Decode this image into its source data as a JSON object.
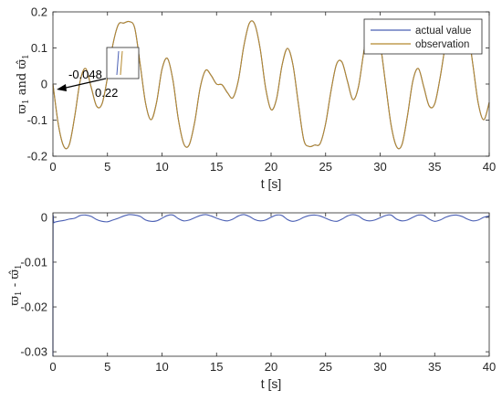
{
  "chart_data": [
    {
      "type": "line",
      "xlabel": "t [s]",
      "ylabel": {
        "main": "ϖ",
        "sub1": "1",
        "mid": " and ",
        "main2": "ϖ̂",
        "sub2": "1"
      },
      "xlim": [
        0,
        40
      ],
      "ylim": [
        -0.2,
        0.2
      ],
      "xticks": [
        0,
        5,
        10,
        15,
        20,
        25,
        30,
        35,
        40
      ],
      "yticks": [
        -0.2,
        -0.1,
        0,
        0.1,
        0.2
      ],
      "ytick_labels": [
        "-0.2",
        "-0.1",
        "0",
        "0.1",
        "0.2"
      ],
      "legend": {
        "position": "top-right",
        "entries": [
          "actual value",
          "observation"
        ]
      },
      "annotation": {
        "text1": "-0.048",
        "text2": "0.22",
        "arrow_to": [
          0.2,
          0.0
        ]
      },
      "series": [
        {
          "name": "actual value",
          "color": "#4a5fb4",
          "x": [
            0,
            0.5,
            1,
            1.5,
            2,
            2.5,
            3,
            3.5,
            4,
            4.5,
            5,
            5.5,
            6,
            6.5,
            7,
            7.5,
            8,
            8.5,
            9,
            9.5,
            10,
            10.5,
            11,
            11.5,
            12,
            12.5,
            13,
            13.5,
            14,
            14.5,
            15,
            15.5,
            16,
            16.5,
            17,
            17.5,
            18,
            18.5,
            19,
            19.5,
            20,
            20.5,
            21,
            21.5,
            22,
            22.5,
            23,
            23.5,
            24,
            24.5,
            25,
            25.5,
            26,
            26.5,
            27,
            27.5,
            28,
            28.5,
            29,
            29.5,
            30,
            30.5,
            31,
            31.5,
            32,
            32.5,
            33,
            33.5,
            34,
            34.5,
            35,
            35.5,
            36,
            36.5,
            37,
            37.5,
            38,
            38.5,
            39,
            39.5,
            40
          ],
          "y": [
            0,
            -0.113,
            -0.173,
            -0.168,
            -0.089,
            0.009,
            0.043,
            -0.008,
            -0.061,
            -0.055,
            0.018,
            0.11,
            0.165,
            0.169,
            0.173,
            0.155,
            0.054,
            -0.054,
            -0.099,
            -0.051,
            0.041,
            0.071,
            0.011,
            -0.098,
            -0.166,
            -0.168,
            -0.105,
            -0.01,
            0.038,
            0.024,
            0,
            -0.002,
            -0.024,
            -0.038,
            0.01,
            0.105,
            0.168,
            0.166,
            0.098,
            -0.011,
            -0.071,
            -0.041,
            0.051,
            0.099,
            0.054,
            -0.054,
            -0.155,
            -0.173,
            -0.169,
            -0.165,
            -0.11,
            -0.018,
            0.055,
            0.061,
            0.008,
            -0.043,
            -0.009,
            0.089,
            0.168,
            0.173,
            0.113,
            0,
            -0.113,
            -0.173,
            -0.168,
            -0.089,
            0.009,
            0.043,
            -0.008,
            -0.061,
            -0.055,
            0.018,
            0.11,
            0.165,
            0.169,
            0.173,
            0.155,
            0.054,
            -0.054,
            -0.099,
            -0.051
          ]
        },
        {
          "name": "observation",
          "color": "#b5892e",
          "x": [
            0,
            0.5,
            1,
            1.5,
            2,
            2.5,
            3,
            3.5,
            4,
            4.5,
            5,
            5.5,
            6,
            6.5,
            7,
            7.5,
            8,
            8.5,
            9,
            9.5,
            10,
            10.5,
            11,
            11.5,
            12,
            12.5,
            13,
            13.5,
            14,
            14.5,
            15,
            15.5,
            16,
            16.5,
            17,
            17.5,
            18,
            18.5,
            19,
            19.5,
            20,
            20.5,
            21,
            21.5,
            22,
            22.5,
            23,
            23.5,
            24,
            24.5,
            25,
            25.5,
            26,
            26.5,
            27,
            27.5,
            28,
            28.5,
            29,
            29.5,
            30,
            30.5,
            31,
            31.5,
            32,
            32.5,
            33,
            33.5,
            34,
            34.5,
            35,
            35.5,
            36,
            36.5,
            37,
            37.5,
            38,
            38.5,
            39,
            39.5,
            40
          ],
          "y": [
            0,
            -0.113,
            -0.173,
            -0.168,
            -0.089,
            0.009,
            0.043,
            -0.008,
            -0.061,
            -0.055,
            0.018,
            0.11,
            0.165,
            0.169,
            0.173,
            0.155,
            0.054,
            -0.054,
            -0.099,
            -0.051,
            0.041,
            0.071,
            0.011,
            -0.098,
            -0.166,
            -0.168,
            -0.105,
            -0.01,
            0.038,
            0.024,
            0,
            -0.002,
            -0.024,
            -0.038,
            0.01,
            0.105,
            0.168,
            0.166,
            0.098,
            -0.011,
            -0.071,
            -0.041,
            0.051,
            0.099,
            0.054,
            -0.054,
            -0.155,
            -0.173,
            -0.169,
            -0.165,
            -0.11,
            -0.018,
            0.055,
            0.061,
            0.008,
            -0.043,
            -0.009,
            0.089,
            0.168,
            0.173,
            0.113,
            0,
            -0.113,
            -0.173,
            -0.168,
            -0.089,
            0.009,
            0.043,
            -0.008,
            -0.061,
            -0.055,
            0.018,
            0.11,
            0.165,
            0.169,
            0.173,
            0.155,
            0.054,
            -0.054,
            -0.099,
            -0.051
          ]
        }
      ]
    },
    {
      "type": "line",
      "xlabel": "t [s]",
      "ylabel": {
        "main": "ϖ",
        "sub1": "1",
        "mid": " - ",
        "main2": "ϖ̂",
        "sub2": "1"
      },
      "xlim": [
        0,
        40
      ],
      "ylim": [
        -0.031,
        0.001
      ],
      "xticks": [
        0,
        5,
        10,
        15,
        20,
        25,
        30,
        35,
        40
      ],
      "yticks": [
        -0.03,
        -0.02,
        -0.01,
        0
      ],
      "ytick_labels": [
        "-0.03",
        "-0.02",
        "-0.01",
        "0"
      ],
      "series": [
        {
          "color": "#4a5fb4",
          "x": [
            0,
            0.01,
            0.1,
            0.5,
            1,
            1.5,
            2,
            2.5,
            3,
            3.5,
            4,
            4.5,
            5,
            5.5,
            6,
            6.5,
            7,
            7.5,
            8,
            8.5,
            9,
            9.5,
            10,
            10.5,
            11,
            11.5,
            12,
            12.5,
            13,
            13.5,
            14,
            14.5,
            15,
            15.5,
            16,
            16.5,
            17,
            17.5,
            18,
            18.5,
            19,
            19.5,
            20,
            20.5,
            21,
            21.5,
            22,
            22.5,
            23,
            23.5,
            24,
            24.5,
            25,
            25.5,
            26,
            26.5,
            27,
            27.5,
            28,
            28.5,
            29,
            29.5,
            30,
            30.5,
            31,
            31.5,
            32,
            32.5,
            33,
            33.5,
            34,
            34.5,
            35,
            35.5,
            36,
            36.5,
            37,
            37.5,
            38,
            38.5,
            39,
            39.5,
            40
          ],
          "y": [
            -0.031,
            -0.002,
            -0.0012,
            -0.0009,
            -0.0007,
            -0.0004,
            -0.0002,
            0.0004,
            0.0005,
            0.0002,
            -0.0005,
            -0.0009,
            -0.001,
            -0.0006,
            -0.0002,
            0.0003,
            0.0006,
            0.0005,
            0.0002,
            -0.0006,
            -0.0009,
            -0.0008,
            -0.0002,
            0.0004,
            0.0005,
            -0.0003,
            -0.0008,
            -0.0006,
            -0.0001,
            0.0004,
            0.0006,
            0.0003,
            -0.0002,
            -0.0006,
            -0.0008,
            -0.0004,
            0.0003,
            0.0006,
            0.0002,
            -0.0005,
            -0.0008,
            -0.0006,
            0.0,
            0.0005,
            0.0004,
            -0.0005,
            -0.0009,
            -0.0006,
            0.0,
            0.0004,
            0.0005,
            0.0003,
            -0.0002,
            -0.0007,
            -0.0009,
            -0.0004,
            0.0003,
            0.0006,
            0.0003,
            -0.0005,
            -0.0008,
            -0.0006,
            -0.0001,
            0.0004,
            0.0005,
            -0.0004,
            -0.0008,
            -0.0006,
            0.0,
            0.0005,
            0.0004,
            -0.0004,
            -0.0009,
            -0.0006,
            0.0,
            0.0004,
            0.0005,
            0.0002,
            -0.0004,
            -0.0008,
            -0.0006,
            0.0,
            0.0003
          ]
        }
      ]
    }
  ]
}
